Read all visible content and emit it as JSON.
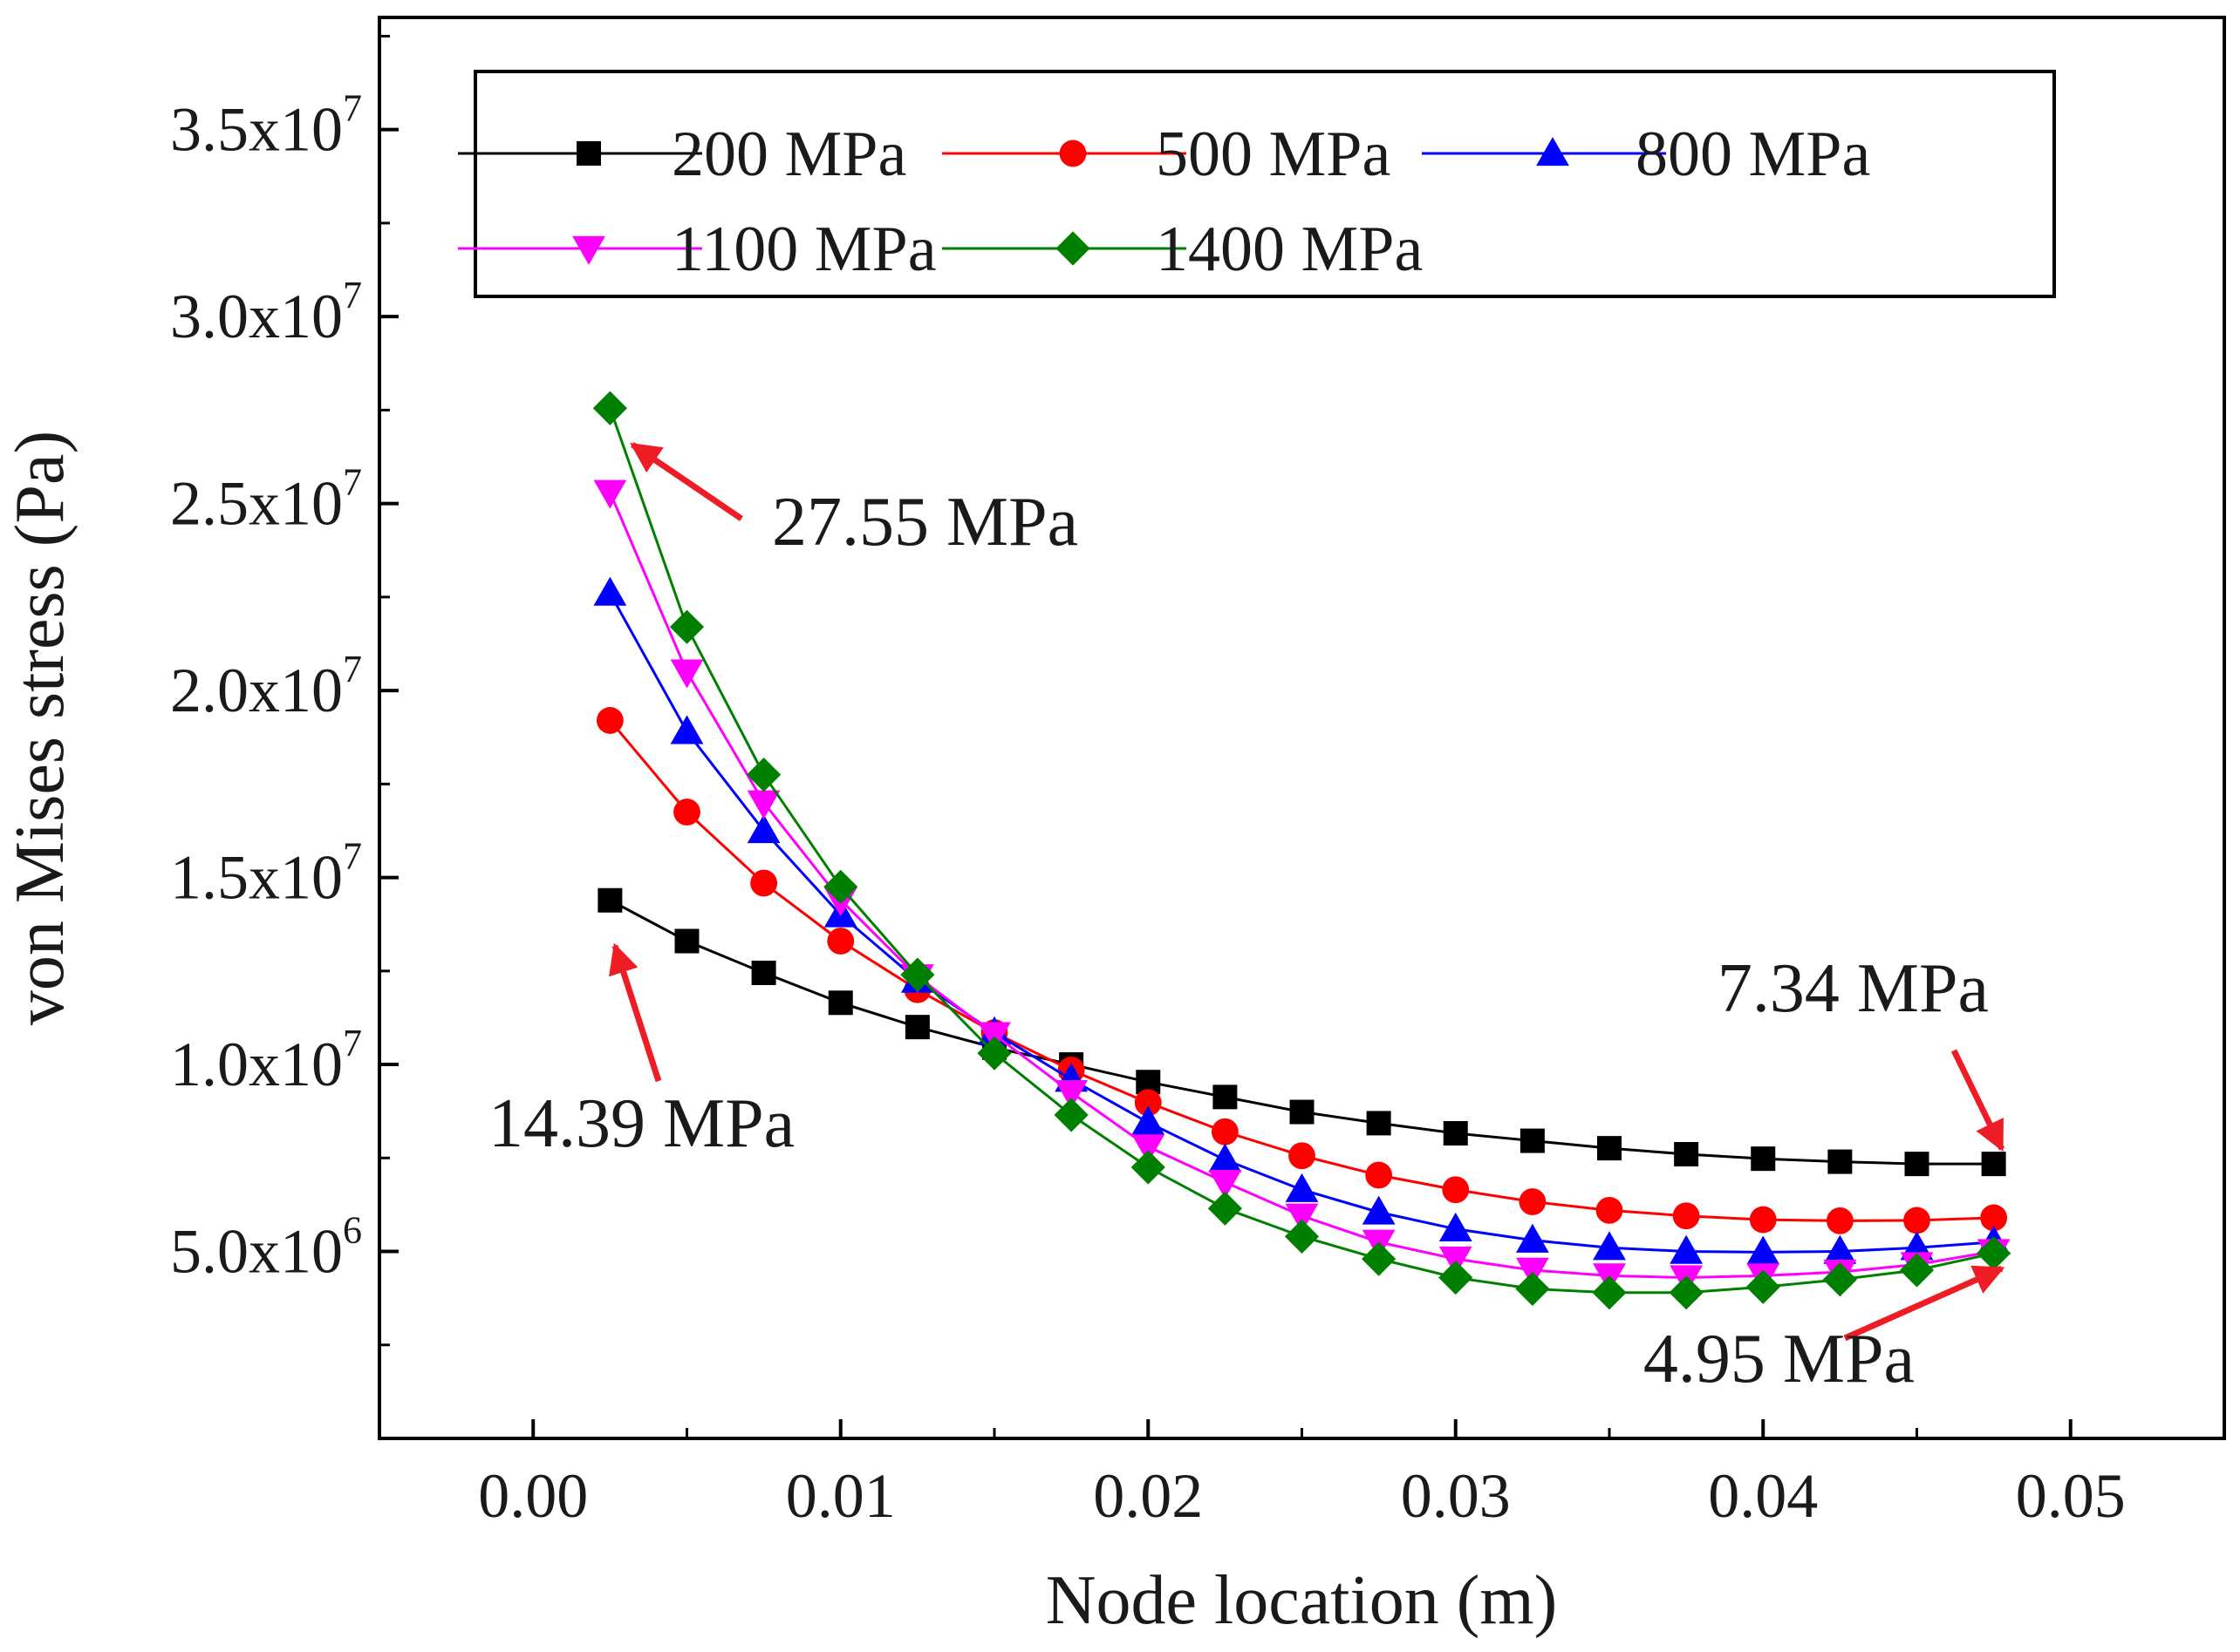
{
  "chart_data": {
    "type": "line",
    "title": "",
    "xlabel": "Node location (m)",
    "ylabel": "von Mises stress (Pa)",
    "xlim": [
      -0.005,
      0.055
    ],
    "ylim": [
      0,
      38000000
    ],
    "x_ticks": [
      "0.00",
      "0.01",
      "0.02",
      "0.03",
      "0.04",
      "0.05"
    ],
    "y_ticks": [
      {
        "mantissa": "5.0x10",
        "exp": "6",
        "value": 5000000
      },
      {
        "mantissa": "1.0x10",
        "exp": "7",
        "value": 10000000
      },
      {
        "mantissa": "1.5x10",
        "exp": "7",
        "value": 15000000
      },
      {
        "mantissa": "2.0x10",
        "exp": "7",
        "value": 20000000
      },
      {
        "mantissa": "2.5x10",
        "exp": "7",
        "value": 25000000
      },
      {
        "mantissa": "3.0x10",
        "exp": "7",
        "value": 30000000
      },
      {
        "mantissa": "3.5x10",
        "exp": "7",
        "value": 35000000
      }
    ],
    "grid": false,
    "legend_position": "top",
    "x": [
      0.0025,
      0.005,
      0.0075,
      0.01,
      0.0125,
      0.015,
      0.0175,
      0.02,
      0.0225,
      0.025,
      0.0275,
      0.03,
      0.0325,
      0.035,
      0.0375,
      0.04,
      0.0425,
      0.045,
      0.0475
    ],
    "series": [
      {
        "name": "200 MPa",
        "color": "#000000",
        "marker": "square",
        "values": [
          14390000,
          13300000,
          12450000,
          11650000,
          11000000,
          10450000,
          10000000,
          9530000,
          9130000,
          8730000,
          8430000,
          8160000,
          7960000,
          7760000,
          7600000,
          7480000,
          7400000,
          7340000,
          7340000
        ]
      },
      {
        "name": "500 MPa",
        "color": "#ff0000",
        "marker": "circle",
        "values": [
          19200000,
          16750000,
          14850000,
          13300000,
          12000000,
          10850000,
          9850000,
          8980000,
          8200000,
          7560000,
          7040000,
          6650000,
          6330000,
          6100000,
          5950000,
          5850000,
          5820000,
          5830000,
          5900000
        ]
      },
      {
        "name": "800 MPa",
        "color": "#0000ff",
        "marker": "triangle-up",
        "values": [
          22600000,
          18900000,
          16250000,
          14000000,
          12250000,
          10850000,
          9600000,
          8450000,
          7450000,
          6650000,
          6050000,
          5600000,
          5300000,
          5100000,
          5000000,
          4980000,
          5000000,
          5100000,
          5250000
        ]
      },
      {
        "name": "1100 MPa",
        "color": "#ff00ff",
        "marker": "triangle-down",
        "values": [
          25300000,
          20500000,
          17000000,
          14400000,
          12350000,
          10800000,
          9250000,
          7800000,
          6850000,
          5950000,
          5250000,
          4800000,
          4500000,
          4350000,
          4300000,
          4350000,
          4450000,
          4650000,
          5000000
        ]
      },
      {
        "name": "1400 MPa",
        "color": "#008000",
        "marker": "diamond",
        "values": [
          27550000,
          21700000,
          17750000,
          14750000,
          12400000,
          10300000,
          8650000,
          7250000,
          6150000,
          5400000,
          4800000,
          4300000,
          4000000,
          3900000,
          3900000,
          4050000,
          4250000,
          4500000,
          4950000
        ]
      }
    ],
    "annotations": [
      {
        "text": "27.55 MPa",
        "series": "1400 MPa",
        "x": 0.0025,
        "y": 27550000
      },
      {
        "text": "14.39 MPa",
        "series": "200 MPa",
        "x": 0.0025,
        "y": 14390000
      },
      {
        "text": "7.34 MPa",
        "series": "200 MPa",
        "x": 0.0475,
        "y": 7340000
      },
      {
        "text": "4.95 MPa",
        "series": "1400 MPa",
        "x": 0.0475,
        "y": 4950000
      }
    ],
    "annotation_arrow_color": "#ee1c25"
  }
}
